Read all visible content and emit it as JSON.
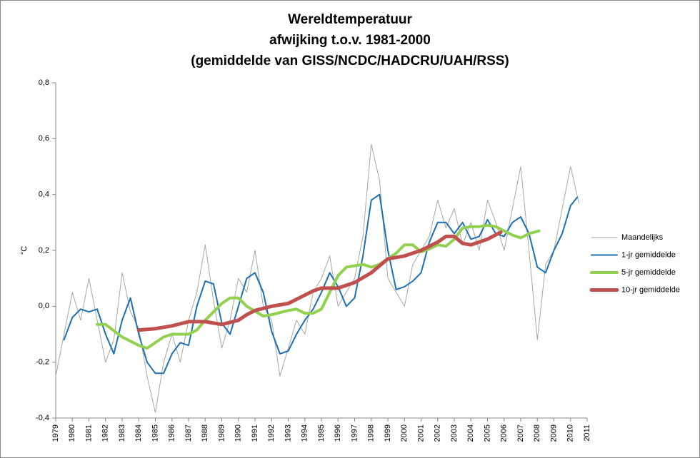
{
  "chart_data": {
    "type": "line",
    "title": [
      "Wereldtemperatuur",
      "afwijking t.o.v. 1981-2000",
      "(gemiddelde van GISS/NCDC/HADCRU/UAH/RSS)"
    ],
    "y_label": "°C",
    "xlim": [
      1979,
      2011
    ],
    "xticks": [
      1979,
      1980,
      1981,
      1982,
      1983,
      1984,
      1985,
      1986,
      1987,
      1988,
      1989,
      1990,
      1991,
      1992,
      1993,
      1994,
      1995,
      1996,
      1997,
      1998,
      1999,
      2000,
      2001,
      2002,
      2003,
      2004,
      2005,
      2006,
      2007,
      2008,
      2009,
      2010,
      2011
    ],
    "ylim": [
      -0.4,
      0.8
    ],
    "yticks": [
      {
        "value": -0.4,
        "label": "-0,4"
      },
      {
        "value": -0.2,
        "label": "-0,2"
      },
      {
        "value": 0,
        "label": "0,0"
      },
      {
        "value": 0.2,
        "label": "0,2"
      },
      {
        "value": 0.4,
        "label": "0,4"
      },
      {
        "value": 0.6,
        "label": "0,6"
      },
      {
        "value": 0.8,
        "label": "0,8"
      }
    ],
    "grid": false,
    "legend": "right",
    "series": [
      {
        "name": "Maandelijks",
        "color": "#a6a6a6",
        "width": 1,
        "x": [
          1979.0,
          1979.5,
          1980.0,
          1980.5,
          1981.0,
          1981.5,
          1982.0,
          1982.5,
          1983.0,
          1983.5,
          1984.0,
          1984.5,
          1985.0,
          1985.5,
          1986.0,
          1986.5,
          1987.0,
          1987.5,
          1988.0,
          1988.5,
          1989.0,
          1989.5,
          1990.0,
          1990.5,
          1991.0,
          1991.5,
          1992.0,
          1992.5,
          1993.0,
          1993.5,
          1994.0,
          1994.5,
          1995.0,
          1995.5,
          1996.0,
          1996.5,
          1997.0,
          1997.5,
          1998.0,
          1998.5,
          1999.0,
          1999.5,
          2000.0,
          2000.5,
          2001.0,
          2001.5,
          2002.0,
          2002.5,
          2003.0,
          2003.5,
          2004.0,
          2004.5,
          2005.0,
          2005.5,
          2006.0,
          2006.5,
          2007.0,
          2007.5,
          2008.0,
          2008.5,
          2009.0,
          2009.5,
          2010.0,
          2010.5
        ],
        "values": [
          -0.25,
          -0.1,
          0.05,
          -0.05,
          0.1,
          -0.05,
          -0.2,
          -0.12,
          0.12,
          -0.02,
          -0.08,
          -0.25,
          -0.38,
          -0.2,
          -0.1,
          -0.2,
          -0.05,
          0.05,
          0.22,
          0.02,
          -0.15,
          -0.05,
          0.1,
          0.05,
          0.2,
          0.0,
          -0.05,
          -0.25,
          -0.15,
          -0.05,
          -0.1,
          0.05,
          0.1,
          0.18,
          0.0,
          0.05,
          0.1,
          0.25,
          0.58,
          0.45,
          0.1,
          0.05,
          0.0,
          0.15,
          0.2,
          0.25,
          0.38,
          0.28,
          0.35,
          0.22,
          0.3,
          0.2,
          0.38,
          0.3,
          0.2,
          0.35,
          0.5,
          0.2,
          -0.12,
          0.15,
          0.2,
          0.35,
          0.5,
          0.37
        ]
      },
      {
        "name": "1-jr gemiddelde",
        "color": "#1f6fb2",
        "width": 2,
        "x": [
          1979.5,
          1980.0,
          1980.5,
          1981.0,
          1981.5,
          1982.0,
          1982.5,
          1983.0,
          1983.5,
          1984.0,
          1984.5,
          1985.0,
          1985.5,
          1986.0,
          1986.5,
          1987.0,
          1987.5,
          1988.0,
          1988.5,
          1989.0,
          1989.5,
          1990.0,
          1990.5,
          1991.0,
          1991.5,
          1992.0,
          1992.5,
          1993.0,
          1993.5,
          1994.0,
          1994.5,
          1995.0,
          1995.5,
          1996.0,
          1996.5,
          1997.0,
          1997.5,
          1998.0,
          1998.5,
          1999.0,
          1999.5,
          2000.0,
          2000.5,
          2001.0,
          2001.5,
          2002.0,
          2002.5,
          2003.0,
          2003.5,
          2004.0,
          2004.5,
          2005.0,
          2005.5,
          2006.0,
          2006.5,
          2007.0,
          2007.5,
          2008.0,
          2008.5,
          2009.0,
          2009.5,
          2010.0,
          2010.4
        ],
        "values": [
          -0.12,
          -0.04,
          -0.01,
          -0.02,
          -0.01,
          -0.1,
          -0.17,
          -0.05,
          0.03,
          -0.1,
          -0.2,
          -0.24,
          -0.24,
          -0.17,
          -0.13,
          -0.14,
          0.0,
          0.09,
          0.08,
          -0.06,
          -0.1,
          0.0,
          0.1,
          0.12,
          0.05,
          -0.09,
          -0.17,
          -0.16,
          -0.1,
          -0.05,
          -0.01,
          0.05,
          0.12,
          0.07,
          0.0,
          0.03,
          0.18,
          0.38,
          0.4,
          0.2,
          0.06,
          0.07,
          0.09,
          0.12,
          0.23,
          0.3,
          0.3,
          0.26,
          0.3,
          0.24,
          0.25,
          0.31,
          0.26,
          0.25,
          0.3,
          0.32,
          0.26,
          0.14,
          0.12,
          0.2,
          0.26,
          0.36,
          0.39
        ]
      },
      {
        "name": "5-jr gemiddelde",
        "color": "#92d050",
        "width": 4,
        "x": [
          1981.5,
          1982.0,
          1983.0,
          1984.0,
          1984.5,
          1985.5,
          1986.0,
          1987.0,
          1987.5,
          1988.0,
          1988.5,
          1989.0,
          1989.5,
          1990.0,
          1990.5,
          1991.5,
          1992.0,
          1993.0,
          1993.5,
          1994.0,
          1994.5,
          1995.0,
          1995.5,
          1996.0,
          1996.5,
          1997.5,
          1998.0,
          1998.5,
          1999.0,
          1999.5,
          2000.0,
          2000.5,
          2001.0,
          2001.5,
          2002.0,
          2002.5,
          2003.0,
          2003.5,
          2004.0,
          2004.5,
          2005.0,
          2005.5,
          2006.0,
          2006.5,
          2007.0,
          2007.5,
          2008.1
        ],
        "values": [
          -0.065,
          -0.065,
          -0.11,
          -0.14,
          -0.15,
          -0.11,
          -0.1,
          -0.1,
          -0.085,
          -0.05,
          -0.02,
          0.01,
          0.03,
          0.03,
          0.0,
          -0.035,
          -0.03,
          -0.015,
          -0.01,
          -0.025,
          -0.025,
          -0.01,
          0.05,
          0.11,
          0.14,
          0.15,
          0.14,
          0.15,
          0.17,
          0.19,
          0.22,
          0.22,
          0.195,
          0.205,
          0.22,
          0.215,
          0.24,
          0.28,
          0.285,
          0.285,
          0.29,
          0.285,
          0.27,
          0.255,
          0.245,
          0.26,
          0.27
        ]
      },
      {
        "name": "10-jr gemiddelde",
        "color": "#c0504d",
        "width": 5,
        "x": [
          1984.0,
          1985.0,
          1986.0,
          1987.0,
          1988.0,
          1989.0,
          1990.0,
          1990.5,
          1991.0,
          1992.0,
          1993.0,
          1994.0,
          1994.5,
          1995.0,
          1996.0,
          1997.0,
          1998.0,
          1999.0,
          2000.0,
          2001.0,
          2002.0,
          2002.5,
          2003.0,
          2003.5,
          2004.0,
          2005.0,
          2005.8
        ],
        "values": [
          -0.085,
          -0.08,
          -0.07,
          -0.055,
          -0.055,
          -0.065,
          -0.05,
          -0.03,
          -0.015,
          0.0,
          0.01,
          0.04,
          0.055,
          0.065,
          0.065,
          0.085,
          0.12,
          0.17,
          0.18,
          0.2,
          0.23,
          0.25,
          0.25,
          0.225,
          0.22,
          0.24,
          0.265
        ]
      }
    ]
  }
}
